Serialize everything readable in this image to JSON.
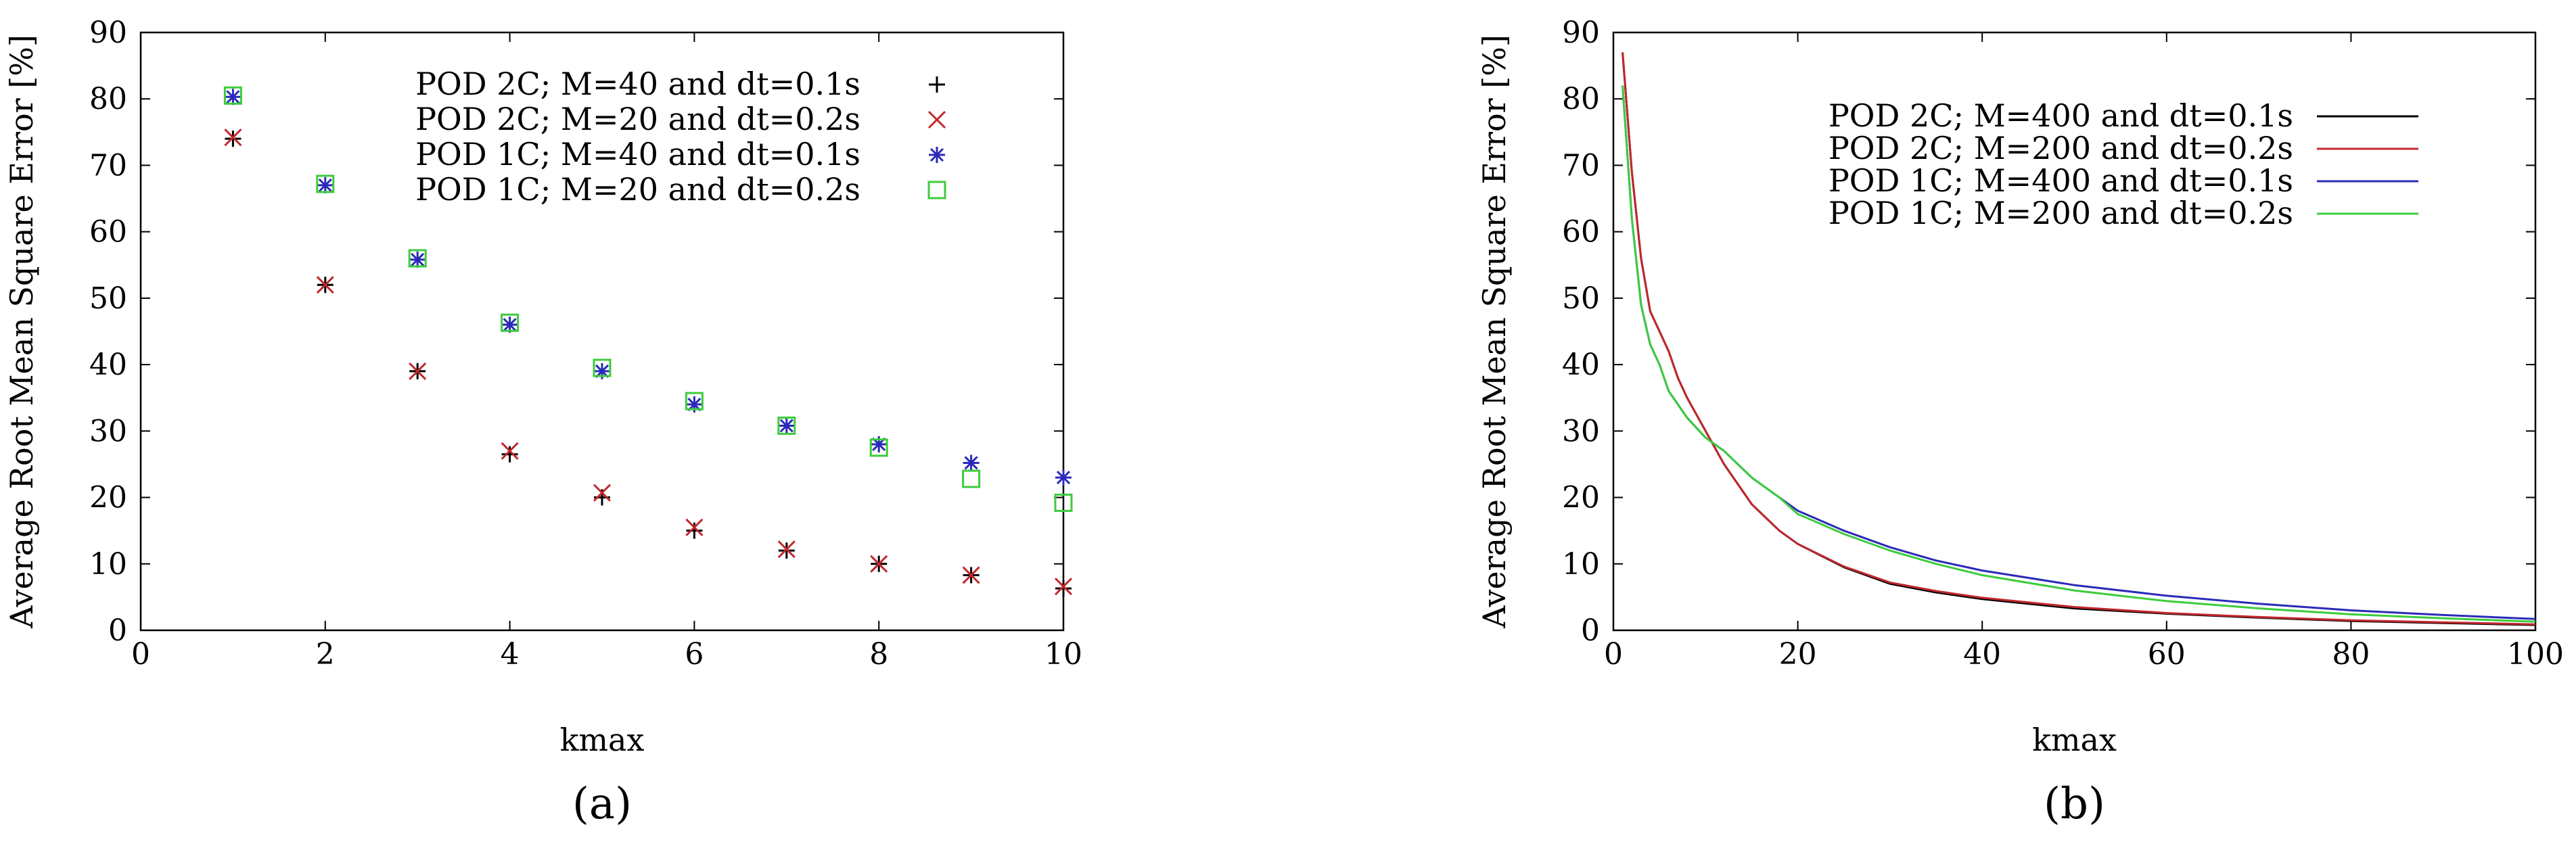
{
  "chart_data": [
    {
      "panel_label": "(a)",
      "type": "scatter",
      "xlabel": "kmax",
      "ylabel": "Average Root Mean Square Error [%]",
      "xlim": [
        0,
        10
      ],
      "ylim": [
        0,
        90
      ],
      "xticks": [
        0,
        2,
        4,
        6,
        8,
        10
      ],
      "yticks": [
        0,
        10,
        20,
        30,
        40,
        50,
        60,
        70,
        80,
        90
      ],
      "grid": false,
      "legend_position": "top-right",
      "series": [
        {
          "name": "POD 2C; M=40 and dt=0.1s",
          "marker": "plus",
          "color": "#000000",
          "x": [
            1,
            2,
            3,
            4,
            5,
            6,
            7,
            8,
            9,
            10
          ],
          "y": [
            74,
            52,
            39,
            26.5,
            20,
            15,
            12,
            10,
            8.3,
            6.3
          ]
        },
        {
          "name": "POD 2C; M=20 and dt=0.2s",
          "marker": "cross",
          "color": "#c0282d",
          "x": [
            1,
            2,
            3,
            4,
            5,
            6,
            7,
            8,
            9,
            10
          ],
          "y": [
            74.2,
            52,
            39,
            27,
            20.7,
            15.5,
            12.2,
            10,
            8.3,
            6.6
          ]
        },
        {
          "name": "POD 1C; M=40 and dt=0.1s",
          "marker": "star",
          "color": "#2a2ab8",
          "x": [
            1,
            2,
            3,
            4,
            5,
            6,
            7,
            8,
            9,
            10
          ],
          "y": [
            80.3,
            67,
            55.8,
            46,
            39,
            34,
            30.8,
            28,
            25.2,
            23
          ]
        },
        {
          "name": "POD 1C; M=20 and dt=0.2s",
          "marker": "square",
          "color": "#3ccc3c",
          "x": [
            1,
            2,
            3,
            4,
            5,
            6,
            7,
            8,
            9,
            10
          ],
          "y": [
            80.5,
            67.2,
            56,
            46.3,
            39.5,
            34.5,
            30.8,
            27.5,
            22.8,
            19.2
          ]
        }
      ]
    },
    {
      "panel_label": "(b)",
      "type": "line",
      "xlabel": "kmax",
      "ylabel": "Average Root Mean Square Error [%]",
      "xlim": [
        0,
        100
      ],
      "ylim": [
        0,
        90
      ],
      "xticks": [
        0,
        20,
        40,
        60,
        80,
        100
      ],
      "yticks": [
        0,
        10,
        20,
        30,
        40,
        50,
        60,
        70,
        80,
        90
      ],
      "grid": false,
      "legend_position": "top-right",
      "series": [
        {
          "name": "POD 2C; M=400 and dt=0.1s",
          "color": "#000000",
          "x": [
            1,
            2,
            3,
            4,
            5,
            6,
            7,
            8,
            10,
            12,
            15,
            18,
            20,
            25,
            30,
            35,
            40,
            50,
            60,
            70,
            80,
            90,
            100
          ],
          "y": [
            87,
            69,
            56,
            48,
            45,
            42,
            38,
            35,
            30,
            25,
            19,
            15,
            13,
            9.5,
            7,
            5.7,
            4.7,
            3.3,
            2.5,
            1.9,
            1.4,
            1.1,
            0.8
          ]
        },
        {
          "name": "POD 2C; M=200 and dt=0.2s",
          "color": "#c0282d",
          "x": [
            1,
            2,
            3,
            4,
            5,
            6,
            7,
            8,
            10,
            12,
            15,
            18,
            20,
            25,
            30,
            35,
            40,
            50,
            60,
            70,
            80,
            90,
            100
          ],
          "y": [
            87,
            69,
            56,
            48,
            45,
            42,
            38,
            35,
            30,
            25,
            19,
            15,
            13,
            9.6,
            7.2,
            5.9,
            4.9,
            3.5,
            2.6,
            2,
            1.5,
            1.2,
            0.9
          ]
        },
        {
          "name": "POD 1C; M=400 and dt=0.1s",
          "color": "#2a2ab8",
          "x": [
            1,
            2,
            3,
            4,
            5,
            6,
            7,
            8,
            10,
            12,
            15,
            18,
            20,
            25,
            30,
            35,
            40,
            50,
            60,
            70,
            80,
            90,
            100
          ],
          "y": [
            82,
            62,
            49,
            43,
            40,
            36,
            34,
            32,
            29,
            27,
            23,
            20,
            18,
            15,
            12.5,
            10.5,
            9,
            6.8,
            5.2,
            4,
            3,
            2.3,
            1.7
          ]
        },
        {
          "name": "POD 1C; M=200 and dt=0.2s",
          "color": "#3ccc3c",
          "x": [
            1,
            2,
            3,
            4,
            5,
            6,
            7,
            8,
            10,
            12,
            15,
            18,
            20,
            25,
            30,
            35,
            40,
            50,
            60,
            70,
            80,
            90,
            100
          ],
          "y": [
            82,
            62,
            49,
            43,
            40,
            36,
            34,
            32,
            29,
            27,
            23,
            20,
            17.5,
            14.5,
            12,
            10,
            8.3,
            6,
            4.4,
            3.3,
            2.4,
            1.8,
            1.3
          ]
        }
      ]
    }
  ]
}
